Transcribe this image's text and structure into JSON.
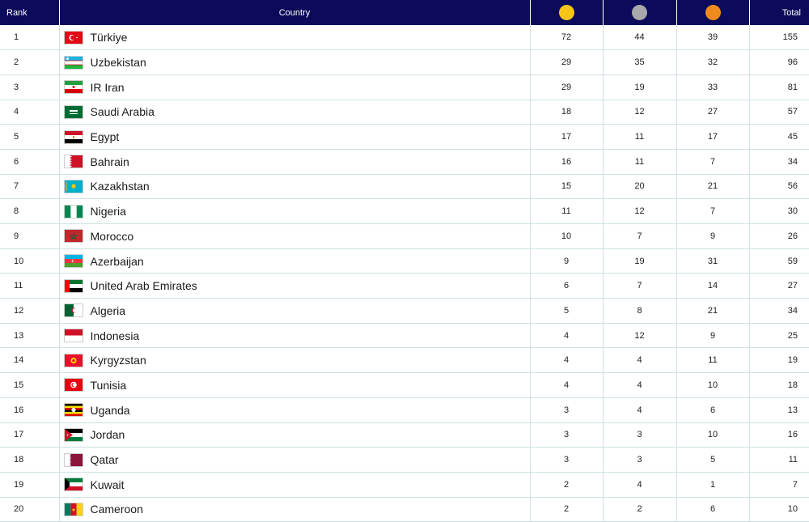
{
  "header": {
    "rank": "Rank",
    "country": "Country",
    "total": "Total",
    "gold_color": "#f5c518",
    "silver_color": "#a7a9ac",
    "bronze_color": "#f08a1c"
  },
  "rows": [
    {
      "rank": "1",
      "country": "Türkiye",
      "gold": "72",
      "silver": "44",
      "bronze": "39",
      "total": "155",
      "flag": "turkiye-flag-icon"
    },
    {
      "rank": "2",
      "country": "Uzbekistan",
      "gold": "29",
      "silver": "35",
      "bronze": "32",
      "total": "96",
      "flag": "uzbekistan-flag-icon"
    },
    {
      "rank": "3",
      "country": "IR Iran",
      "gold": "29",
      "silver": "19",
      "bronze": "33",
      "total": "81",
      "flag": "iran-flag-icon"
    },
    {
      "rank": "4",
      "country": "Saudi Arabia",
      "gold": "18",
      "silver": "12",
      "bronze": "27",
      "total": "57",
      "flag": "saudi-arabia-flag-icon"
    },
    {
      "rank": "5",
      "country": "Egypt",
      "gold": "17",
      "silver": "11",
      "bronze": "17",
      "total": "45",
      "flag": "egypt-flag-icon"
    },
    {
      "rank": "6",
      "country": "Bahrain",
      "gold": "16",
      "silver": "11",
      "bronze": "7",
      "total": "34",
      "flag": "bahrain-flag-icon"
    },
    {
      "rank": "7",
      "country": "Kazakhstan",
      "gold": "15",
      "silver": "20",
      "bronze": "21",
      "total": "56",
      "flag": "kazakhstan-flag-icon"
    },
    {
      "rank": "8",
      "country": "Nigeria",
      "gold": "11",
      "silver": "12",
      "bronze": "7",
      "total": "30",
      "flag": "nigeria-flag-icon"
    },
    {
      "rank": "9",
      "country": "Morocco",
      "gold": "10",
      "silver": "7",
      "bronze": "9",
      "total": "26",
      "flag": "morocco-flag-icon"
    },
    {
      "rank": "10",
      "country": "Azerbaijan",
      "gold": "9",
      "silver": "19",
      "bronze": "31",
      "total": "59",
      "flag": "azerbaijan-flag-icon"
    },
    {
      "rank": "11",
      "country": "United Arab Emirates",
      "gold": "6",
      "silver": "7",
      "bronze": "14",
      "total": "27",
      "flag": "uae-flag-icon"
    },
    {
      "rank": "12",
      "country": "Algeria",
      "gold": "5",
      "silver": "8",
      "bronze": "21",
      "total": "34",
      "flag": "algeria-flag-icon"
    },
    {
      "rank": "13",
      "country": "Indonesia",
      "gold": "4",
      "silver": "12",
      "bronze": "9",
      "total": "25",
      "flag": "indonesia-flag-icon"
    },
    {
      "rank": "14",
      "country": "Kyrgyzstan",
      "gold": "4",
      "silver": "4",
      "bronze": "11",
      "total": "19",
      "flag": "kyrgyzstan-flag-icon"
    },
    {
      "rank": "15",
      "country": "Tunisia",
      "gold": "4",
      "silver": "4",
      "bronze": "10",
      "total": "18",
      "flag": "tunisia-flag-icon"
    },
    {
      "rank": "16",
      "country": "Uganda",
      "gold": "3",
      "silver": "4",
      "bronze": "6",
      "total": "13",
      "flag": "uganda-flag-icon"
    },
    {
      "rank": "17",
      "country": "Jordan",
      "gold": "3",
      "silver": "3",
      "bronze": "10",
      "total": "16",
      "flag": "jordan-flag-icon"
    },
    {
      "rank": "18",
      "country": "Qatar",
      "gold": "3",
      "silver": "3",
      "bronze": "5",
      "total": "11",
      "flag": "qatar-flag-icon"
    },
    {
      "rank": "19",
      "country": "Kuwait",
      "gold": "2",
      "silver": "4",
      "bronze": "1",
      "total": "7",
      "flag": "kuwait-flag-icon"
    },
    {
      "rank": "20",
      "country": "Cameroon",
      "gold": "2",
      "silver": "2",
      "bronze": "6",
      "total": "10",
      "flag": "cameroon-flag-icon"
    }
  ]
}
